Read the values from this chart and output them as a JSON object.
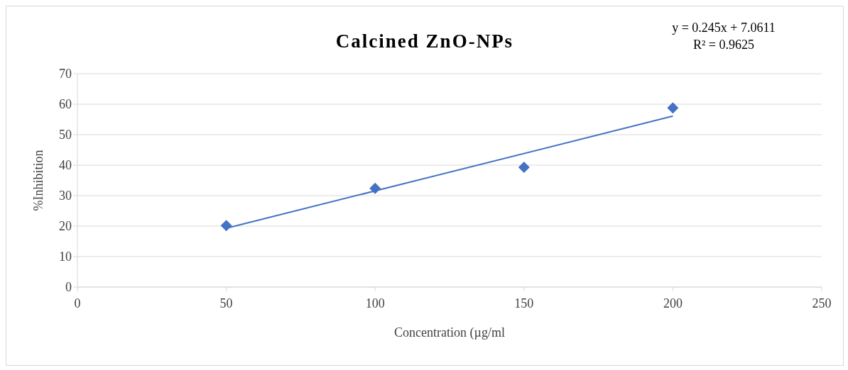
{
  "chart_data": {
    "type": "scatter",
    "title": "Calcined ZnO-NPs",
    "xlabel": "Concentration (µg/ml",
    "ylabel": "%Inhibition",
    "x": [
      50,
      100,
      150,
      200
    ],
    "series": [
      {
        "color": "#4472c4",
        "marker": "diamond",
        "values": [
          20.2,
          32.4,
          39.3,
          58.8
        ]
      },
      {
        "type": "line",
        "color": "#4472c4",
        "marker": "none",
        "x": [
          50,
          200
        ],
        "values": [
          19.3,
          56.1
        ]
      }
    ],
    "xlim": [
      0,
      250
    ],
    "xticks": [
      0,
      50,
      100,
      150,
      200,
      250
    ],
    "ylim": [
      0,
      70
    ],
    "yticks": [
      0,
      10,
      20,
      30,
      40,
      50,
      60,
      70
    ],
    "grid": "y",
    "legend": false,
    "annotations": [
      "y = 0.245x + 7.0611",
      "R² = 0.9625"
    ]
  }
}
